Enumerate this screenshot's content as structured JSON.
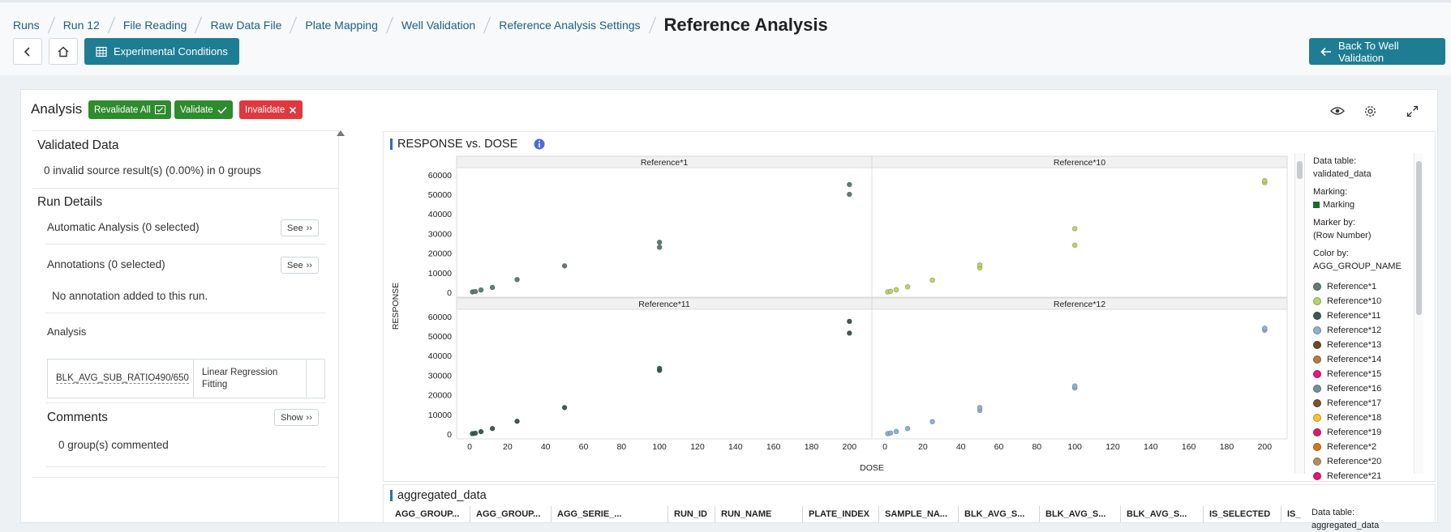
{
  "breadcrumbs": [
    "Runs",
    "Run 12",
    "File Reading",
    "Raw Data File",
    "Plate Mapping",
    "Well Validation",
    "Reference Analysis Settings"
  ],
  "page_title": "Reference Analysis",
  "header": {
    "experimental_conditions_label": "Experimental Conditions",
    "back_label": "Back To Well Validation"
  },
  "analysis": {
    "title": "Analysis",
    "revalidate_label": "Revalidate All",
    "validate_label": "Validate",
    "invalidate_label": "Invalidate"
  },
  "left_panel": {
    "validated_data_title": "Validated Data",
    "invalid_summary": "0 invalid source result(s) (0.00%) in 0 groups",
    "run_details_title": "Run Details",
    "automatic_analysis": "Automatic Analysis (0 selected)",
    "annotations": "Annotations (0 selected)",
    "see_label": "See",
    "no_annotation": "No annotation added to this run.",
    "analysis_label": "Analysis",
    "analysis_row": {
      "measure": "BLK_AVG_SUB_RATIO490/650",
      "method": "Linear Regression Fitting"
    },
    "comments_title": "Comments",
    "show_label": "Show",
    "comments_summary": "0 group(s) commented"
  },
  "viz": {
    "title": "RESPONSE vs. DOSE",
    "legend": {
      "data_table_label": "Data table:",
      "data_table_value": "validated_data",
      "marking_label": "Marking:",
      "marking_value": "Marking",
      "marker_by_label": "Marker by:",
      "marker_by_value": "(Row Number)",
      "color_by_label": "Color by:",
      "color_by_value": "AGG_GROUP_NAME",
      "entries": [
        {
          "name": "Reference*1",
          "color": "#5f7d72"
        },
        {
          "name": "Reference*10",
          "color": "#b8d36a"
        },
        {
          "name": "Reference*11",
          "color": "#3f5a52"
        },
        {
          "name": "Reference*12",
          "color": "#8fb0d2"
        },
        {
          "name": "Reference*13",
          "color": "#6b4a2a"
        },
        {
          "name": "Reference*14",
          "color": "#b57a45"
        },
        {
          "name": "Reference*15",
          "color": "#e4197a"
        },
        {
          "name": "Reference*16",
          "color": "#6f9296"
        },
        {
          "name": "Reference*17",
          "color": "#7a5232"
        },
        {
          "name": "Reference*18",
          "color": "#f3c531"
        },
        {
          "name": "Reference*19",
          "color": "#df1a6e"
        },
        {
          "name": "Reference*2",
          "color": "#d9731a"
        },
        {
          "name": "Reference*20",
          "color": "#b98a62"
        },
        {
          "name": "Reference*21",
          "color": "#e3176f"
        }
      ]
    }
  },
  "chart_data": {
    "type": "scatter",
    "xlabel": "DOSE",
    "ylabel": "RESPONSE",
    "xlim": [
      0,
      205
    ],
    "ylim": [
      0,
      62000
    ],
    "x_ticks": [
      0,
      20,
      40,
      60,
      80,
      100,
      120,
      140,
      160,
      180,
      200
    ],
    "y_ticks": [
      0,
      10000,
      20000,
      30000,
      40000,
      50000,
      60000
    ],
    "panels": [
      {
        "name": "Reference*1",
        "color": "#5f7d72",
        "points": [
          [
            1.5,
            200
          ],
          [
            3,
            400
          ],
          [
            6,
            1200
          ],
          [
            12,
            2500
          ],
          [
            25,
            6500
          ],
          [
            50,
            13500
          ],
          [
            100,
            23000
          ],
          [
            100,
            25500
          ],
          [
            200,
            50000
          ],
          [
            200,
            55000
          ]
        ]
      },
      {
        "name": "Reference*10",
        "color": "#b8d36a",
        "points": [
          [
            1.5,
            200
          ],
          [
            3,
            500
          ],
          [
            6,
            1300
          ],
          [
            12,
            2800
          ],
          [
            25,
            6200
          ],
          [
            50,
            12500
          ],
          [
            50,
            14000
          ],
          [
            100,
            24000
          ],
          [
            100,
            32500
          ],
          [
            200,
            56000
          ],
          [
            200,
            57000
          ]
        ]
      },
      {
        "name": "Reference*11",
        "color": "#3f5a52",
        "points": [
          [
            1.5,
            200
          ],
          [
            3,
            400
          ],
          [
            6,
            1200
          ],
          [
            12,
            2800
          ],
          [
            25,
            6500
          ],
          [
            50,
            13500
          ],
          [
            100,
            32500
          ],
          [
            100,
            33500
          ],
          [
            200,
            51500
          ],
          [
            200,
            57500
          ]
        ]
      },
      {
        "name": "Reference*12",
        "color": "#8fb0d2",
        "points": [
          [
            1.5,
            200
          ],
          [
            3,
            500
          ],
          [
            6,
            1300
          ],
          [
            12,
            2800
          ],
          [
            25,
            6300
          ],
          [
            50,
            12000
          ],
          [
            50,
            13500
          ],
          [
            100,
            23500
          ],
          [
            100,
            24500
          ],
          [
            200,
            53000
          ],
          [
            200,
            54000
          ]
        ]
      }
    ]
  },
  "aggregated": {
    "title": "aggregated_data",
    "columns": [
      "AGG_GROUP...",
      "AGG_GROUP...",
      "AGG_SERIE_...",
      "RUN_ID",
      "RUN_NAME",
      "PLATE_INDEX",
      "SAMPLE_NA...",
      "BLK_AVG_S...",
      "BLK_AVG_S...",
      "BLK_AVG_S...",
      "IS_SELECTED",
      "IS_"
    ],
    "data_table_label": "Data table:",
    "data_table_value": "aggregated_data"
  }
}
